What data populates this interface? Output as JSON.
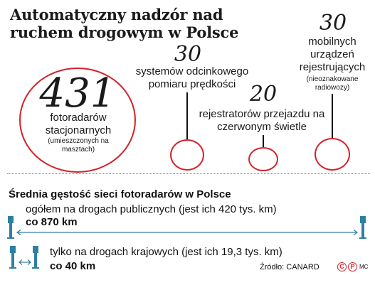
{
  "header": {
    "title": "Automatyczny nadzór nad ruchem drogowym w Polsce"
  },
  "stats": {
    "stationary": {
      "value": "431",
      "label": "fotoradarów stacjonarnych",
      "note": "(umieszczonych na masztach)"
    },
    "section": {
      "value": "30",
      "label": "systemów odcinkowego pomiaru prędkości"
    },
    "redlight": {
      "value": "20",
      "label": "rejestratorów przejazdu na czerwonym świetle"
    },
    "mobile": {
      "value": "30",
      "label": "mobilnych urządzeń rejestrujących",
      "note": "(nieoznakowane radiowozy)"
    }
  },
  "density": {
    "title": "Średnia gęstość sieci fotoradarów w Polsce",
    "rows": [
      {
        "label": "ogółem na drogach publicznych (jest ich 420 tys. km)",
        "value": "co 870 km"
      },
      {
        "label": "tylko na drogach krajowych (jest ich 19,3 tys. km)",
        "value": "co 40 km"
      }
    ]
  },
  "footer": {
    "source": "Źródło: CANARD",
    "copyright_c": "C",
    "copyright_p": "P",
    "author": "MC"
  },
  "colors": {
    "accent": "#d4222b",
    "text": "#111111",
    "icon": "#2f7fa5"
  },
  "icons": {
    "camera": "speed-camera-post-icon",
    "arrow": "double-arrow-icon"
  }
}
